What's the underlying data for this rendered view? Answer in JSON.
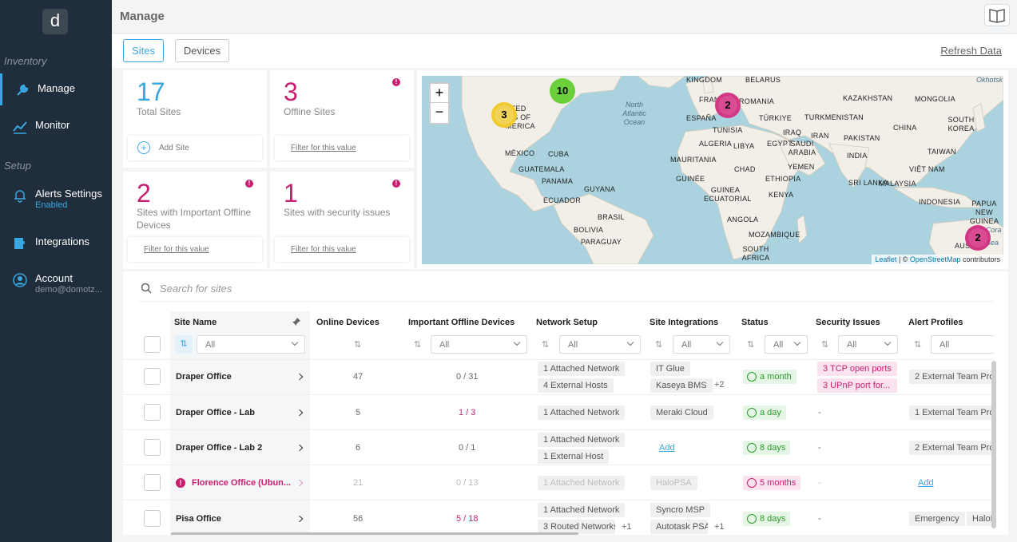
{
  "sidebar": {
    "logo": "d",
    "inventory_label": "Inventory",
    "setup_label": "Setup",
    "items": [
      {
        "label": "Manage"
      },
      {
        "label": "Monitor"
      },
      {
        "label": "Alerts Settings",
        "sub": "Enabled"
      },
      {
        "label": "Integrations"
      },
      {
        "label": "Account",
        "sub": "demo@domotz..."
      }
    ]
  },
  "header": {
    "title": "Manage"
  },
  "tabs": [
    {
      "label": "Sites"
    },
    {
      "label": "Devices"
    }
  ],
  "refresh_label": "Refresh Data",
  "cards": [
    {
      "number": "17",
      "label": "Total Sites",
      "action": "Add Site"
    },
    {
      "number": "3",
      "label": "Offline Sites",
      "action": "Filter for this value"
    },
    {
      "number": "2",
      "label": "Sites with Important Offline Devices",
      "action": "Filter for this value"
    },
    {
      "number": "1",
      "label": "Sites with security issues",
      "action": "Filter for this value"
    }
  ],
  "map": {
    "zoom_in": "+",
    "zoom_out": "−",
    "clusters": [
      "10",
      "3",
      "2",
      "2"
    ],
    "labels": [
      "KINGDOM",
      "BELARUS",
      "KAZAKHSTAN",
      "MONGOLIA",
      "FRANCE",
      "ROMANIA",
      "ESPAÑA",
      "TÜRKIYE",
      "TURKMENISTAN",
      "CHINA",
      "SOUTH KOREA",
      "NITED",
      "TES OF",
      "MERICA",
      "TUNISIA",
      "IRAQ",
      "IRAN",
      "PAKISTAN",
      "ALGERIA",
      "LIBYA",
      "EGYPT",
      "SAUDI ARABIA",
      "INDIA",
      "TAIWAN",
      "MÉXICO",
      "CUBA",
      "MAURITANIA",
      "YEMEN",
      "GUATEMALA",
      "CHAD",
      "ETHIOPIA",
      "VIỆT NAM",
      "PANAMA",
      "GUINÉE",
      "GUYANA",
      "GUINEA ECUATORIAL",
      "KENYA",
      "SRI LANKA",
      "MALAYSIA",
      "ECUADOR",
      "BRASIL",
      "ANGOLA",
      "INDONESIA",
      "PAPUA NEW GUINEA",
      "BOLIVIA",
      "PARAGUAY",
      "MOZAMBIQUE",
      "SOUTH AFRICA",
      "AUSTRA",
      "Okhotsk",
      "Cora",
      "Sea"
    ],
    "ocean": "North Atlantic Ocean",
    "attrib_leaflet": "Leaflet",
    "attrib_mid": " | © ",
    "attrib_osm": "OpenStreetMap",
    "attrib_end": " contributors"
  },
  "table": {
    "search_placeholder": "Search for sites",
    "columns": [
      "Site Name",
      "Online Devices",
      "Important Offline Devices",
      "Network Setup",
      "Site Integrations",
      "Status",
      "Security Issues",
      "Alert Profiles"
    ],
    "filter_all": "All",
    "rows": [
      {
        "name": "Draper Office",
        "online": "47",
        "offline": "0 / 31",
        "net": [
          "1 Attached Network",
          "4 External Hosts"
        ],
        "integ": [
          "IT Glue",
          "Kaseya BMS"
        ],
        "integ_more": "+2",
        "status": "a month",
        "security": [
          "3 TCP open ports",
          "3 UPnP port for..."
        ],
        "alerts": [
          "2 External Team Pro"
        ]
      },
      {
        "name": "Draper Office - Lab",
        "online": "5",
        "offline": "1 / 3",
        "net": [
          "1 Attached Network"
        ],
        "integ": [
          "Meraki Cloud"
        ],
        "integ_more": "",
        "status": "a day",
        "security_text": "-",
        "alerts": [
          "1 External Team Pro"
        ]
      },
      {
        "name": "Draper Office - Lab 2",
        "online": "6",
        "offline": "0 / 1",
        "net": [
          "1 Attached Network",
          "1 External Host"
        ],
        "integ_link": "Add",
        "status": "8 days",
        "security_text": "-",
        "alerts": [
          "2 External Team Pro"
        ]
      },
      {
        "name": "Florence Office (Ubun...",
        "online": "21",
        "offline": "0 / 13",
        "net": [
          "1 Attached Network"
        ],
        "integ": [
          "HaloPSA"
        ],
        "status": "5 months",
        "security_text": "-",
        "alerts_link": "Add"
      },
      {
        "name": "Pisa Office",
        "online": "56",
        "offline": "5 / 18",
        "net": [
          "1 Attached Network",
          "3 Routed Networks"
        ],
        "net_more": "+1",
        "integ": [
          "Syncro MSP",
          "Autotask PSA"
        ],
        "integ_more": "+1",
        "status": "8 days",
        "security_text": "-",
        "alerts": [
          "Emergency",
          "HaloP"
        ]
      }
    ]
  }
}
